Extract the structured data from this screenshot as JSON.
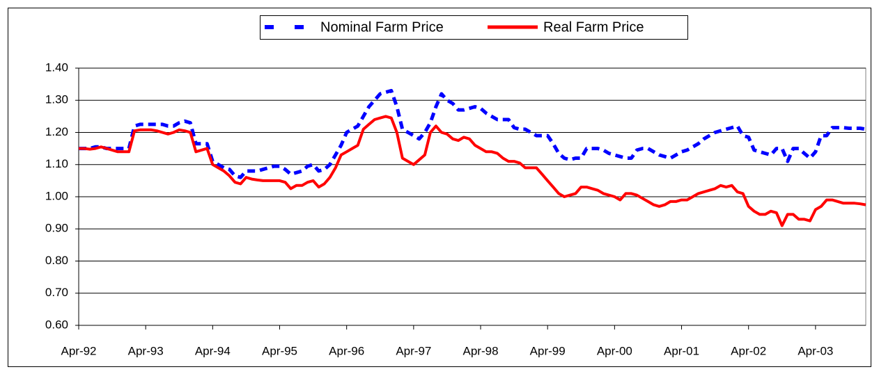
{
  "chart_data": {
    "type": "line",
    "categories": [
      "Apr-92",
      null,
      null,
      null,
      null,
      null,
      null,
      null,
      null,
      null,
      null,
      null,
      "Apr-93",
      null,
      null,
      null,
      null,
      null,
      null,
      null,
      null,
      null,
      null,
      null,
      "Apr-94",
      null,
      null,
      null,
      null,
      null,
      null,
      null,
      null,
      null,
      null,
      null,
      "Apr-95",
      null,
      null,
      null,
      null,
      null,
      null,
      null,
      null,
      null,
      null,
      null,
      "Apr-96",
      null,
      null,
      null,
      null,
      null,
      null,
      null,
      null,
      null,
      null,
      null,
      "Apr-97",
      null,
      null,
      null,
      null,
      null,
      null,
      null,
      null,
      null,
      null,
      null,
      "Apr-98",
      null,
      null,
      null,
      null,
      null,
      null,
      null,
      null,
      null,
      null,
      null,
      "Apr-99",
      null,
      null,
      null,
      null,
      null,
      null,
      null,
      null,
      null,
      null,
      null,
      "Apr-00",
      null,
      null,
      null,
      null,
      null,
      null,
      null,
      null,
      null,
      null,
      null,
      "Apr-01",
      null,
      null,
      null,
      null,
      null,
      null,
      null,
      null,
      null,
      null,
      null,
      "Apr-02",
      null,
      null,
      null,
      null,
      null,
      null,
      null,
      null,
      null,
      null,
      null,
      "Apr-03",
      null,
      null,
      null,
      null,
      null,
      null,
      null,
      null,
      null
    ],
    "series": [
      {
        "name": "Nominal Farm Price",
        "color": "#0000ff",
        "dashed": true,
        "values": [
          1.15,
          1.15,
          1.15,
          1.155,
          1.155,
          1.15,
          1.15,
          1.15,
          1.15,
          1.15,
          1.22,
          1.225,
          1.225,
          1.225,
          1.225,
          1.225,
          1.22,
          1.22,
          1.23,
          1.235,
          1.23,
          1.165,
          1.165,
          1.165,
          1.11,
          1.1,
          1.09,
          1.085,
          1.065,
          1.06,
          1.08,
          1.08,
          1.08,
          1.085,
          1.09,
          1.095,
          1.095,
          1.085,
          1.07,
          1.075,
          1.08,
          1.095,
          1.1,
          1.08,
          1.085,
          1.1,
          1.13,
          1.16,
          1.2,
          1.21,
          1.22,
          1.25,
          1.28,
          1.3,
          1.32,
          1.325,
          1.33,
          1.28,
          1.21,
          1.2,
          1.19,
          1.18,
          1.2,
          1.23,
          1.28,
          1.32,
          1.3,
          1.29,
          1.27,
          1.27,
          1.275,
          1.28,
          1.275,
          1.26,
          1.25,
          1.24,
          1.24,
          1.24,
          1.215,
          1.21,
          1.21,
          1.2,
          1.19,
          1.19,
          1.19,
          1.165,
          1.135,
          1.12,
          1.115,
          1.12,
          1.12,
          1.15,
          1.15,
          1.15,
          1.145,
          1.135,
          1.13,
          1.125,
          1.12,
          1.12,
          1.145,
          1.15,
          1.15,
          1.14,
          1.13,
          1.125,
          1.12,
          1.13,
          1.14,
          1.145,
          1.155,
          1.165,
          1.18,
          1.19,
          1.2,
          1.205,
          1.21,
          1.215,
          1.22,
          1.19,
          1.185,
          1.145,
          1.14,
          1.135,
          1.13,
          1.15,
          1.15,
          1.11,
          1.15,
          1.15,
          1.135,
          1.12,
          1.14,
          1.19,
          1.19,
          1.215,
          1.215,
          1.215,
          1.213,
          1.213,
          1.213,
          1.21
        ]
      },
      {
        "name": "Real Farm Price",
        "color": "#ff0000",
        "dashed": false,
        "values": [
          1.15,
          1.15,
          1.148,
          1.15,
          1.155,
          1.15,
          1.145,
          1.14,
          1.14,
          1.14,
          1.205,
          1.208,
          1.208,
          1.208,
          1.205,
          1.2,
          1.195,
          1.2,
          1.208,
          1.205,
          1.2,
          1.14,
          1.145,
          1.15,
          1.1,
          1.09,
          1.08,
          1.065,
          1.045,
          1.04,
          1.06,
          1.055,
          1.052,
          1.05,
          1.05,
          1.05,
          1.05,
          1.045,
          1.025,
          1.035,
          1.035,
          1.045,
          1.05,
          1.03,
          1.04,
          1.06,
          1.09,
          1.13,
          1.14,
          1.15,
          1.16,
          1.21,
          1.225,
          1.24,
          1.245,
          1.25,
          1.245,
          1.2,
          1.12,
          1.11,
          1.1,
          1.115,
          1.13,
          1.2,
          1.22,
          1.2,
          1.195,
          1.18,
          1.175,
          1.185,
          1.18,
          1.16,
          1.15,
          1.14,
          1.14,
          1.135,
          1.12,
          1.11,
          1.11,
          1.105,
          1.09,
          1.09,
          1.09,
          1.07,
          1.05,
          1.03,
          1.01,
          1.0,
          1.005,
          1.01,
          1.03,
          1.03,
          1.025,
          1.02,
          1.01,
          1.005,
          1.0,
          0.99,
          1.01,
          1.01,
          1.005,
          0.995,
          0.985,
          0.975,
          0.97,
          0.975,
          0.985,
          0.985,
          0.99,
          0.99,
          1.0,
          1.01,
          1.015,
          1.02,
          1.025,
          1.035,
          1.03,
          1.035,
          1.015,
          1.01,
          0.97,
          0.955,
          0.945,
          0.945,
          0.955,
          0.95,
          0.91,
          0.945,
          0.945,
          0.93,
          0.93,
          0.925,
          0.96,
          0.97,
          0.99,
          0.99,
          0.985,
          0.98,
          0.98,
          0.98,
          0.978,
          0.975
        ]
      }
    ],
    "ylim": [
      0.6,
      1.4
    ],
    "yticks": [
      {
        "value": 0.6,
        "label": "0.60"
      },
      {
        "value": 0.7,
        "label": "0.70"
      },
      {
        "value": 0.8,
        "label": "0.80"
      },
      {
        "value": 0.9,
        "label": "0.90"
      },
      {
        "value": 1.0,
        "label": "1.00"
      },
      {
        "value": 1.1,
        "label": "1.10"
      },
      {
        "value": 1.2,
        "label": "1.20"
      },
      {
        "value": 1.3,
        "label": "1.30"
      },
      {
        "value": 1.4,
        "label": "1.40"
      }
    ],
    "grid": true,
    "legend": "top"
  }
}
